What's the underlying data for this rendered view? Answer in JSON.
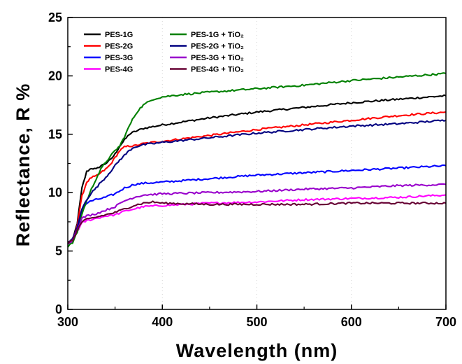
{
  "chart_data": {
    "type": "line",
    "title": "",
    "xlabel": "Wavelength (nm)",
    "ylabel": "Reflectance, R %",
    "xlim": [
      300,
      700
    ],
    "ylim": [
      0,
      25
    ],
    "xticks": [
      300,
      400,
      500,
      600,
      700
    ],
    "yticks": [
      0,
      5,
      10,
      15,
      20,
      25
    ],
    "grid": false,
    "legend_position": "top-left",
    "series": [
      {
        "name": "PES-1G",
        "color": "#000000",
        "legend_col": 0,
        "legend_row": 0,
        "points": [
          [
            300,
            5.6
          ],
          [
            305,
            5.9
          ],
          [
            310,
            7.4
          ],
          [
            315,
            10.4
          ],
          [
            320,
            11.8
          ],
          [
            325,
            12.1
          ],
          [
            330,
            12.0
          ],
          [
            335,
            12.3
          ],
          [
            340,
            12.5
          ],
          [
            345,
            12.8
          ],
          [
            350,
            13.3
          ],
          [
            355,
            14.0
          ],
          [
            360,
            14.5
          ],
          [
            365,
            15.0
          ],
          [
            370,
            15.2
          ],
          [
            380,
            15.5
          ],
          [
            400,
            15.8
          ],
          [
            450,
            16.4
          ],
          [
            500,
            16.9
          ],
          [
            550,
            17.3
          ],
          [
            600,
            17.7
          ],
          [
            650,
            18.0
          ],
          [
            700,
            18.3
          ]
        ]
      },
      {
        "name": "PES-2G",
        "color": "#ff0000",
        "legend_col": 0,
        "legend_row": 1,
        "points": [
          [
            300,
            5.7
          ],
          [
            305,
            6.0
          ],
          [
            310,
            7.2
          ],
          [
            315,
            9.7
          ],
          [
            320,
            10.9
          ],
          [
            325,
            11.3
          ],
          [
            330,
            11.4
          ],
          [
            335,
            11.7
          ],
          [
            340,
            12.0
          ],
          [
            345,
            12.4
          ],
          [
            350,
            13.0
          ],
          [
            355,
            13.6
          ],
          [
            360,
            13.9
          ],
          [
            365,
            14.0
          ],
          [
            370,
            14.0
          ],
          [
            380,
            14.2
          ],
          [
            400,
            14.4
          ],
          [
            450,
            14.9
          ],
          [
            500,
            15.4
          ],
          [
            550,
            15.8
          ],
          [
            600,
            16.2
          ],
          [
            650,
            16.6
          ],
          [
            700,
            16.9
          ]
        ]
      },
      {
        "name": "PES-3G",
        "color": "#0000ff",
        "legend_col": 0,
        "legend_row": 2,
        "points": [
          [
            300,
            5.6
          ],
          [
            305,
            5.8
          ],
          [
            310,
            7.0
          ],
          [
            315,
            8.6
          ],
          [
            320,
            9.1
          ],
          [
            325,
            9.3
          ],
          [
            330,
            9.4
          ],
          [
            340,
            9.6
          ],
          [
            350,
            9.9
          ],
          [
            360,
            10.4
          ],
          [
            370,
            10.7
          ],
          [
            380,
            10.8
          ],
          [
            400,
            10.9
          ],
          [
            450,
            11.2
          ],
          [
            500,
            11.5
          ],
          [
            550,
            11.7
          ],
          [
            600,
            11.9
          ],
          [
            650,
            12.1
          ],
          [
            700,
            12.3
          ]
        ]
      },
      {
        "name": "PES-4G",
        "color": "#ff00ff",
        "legend_col": 0,
        "legend_row": 3,
        "points": [
          [
            300,
            5.6
          ],
          [
            305,
            5.8
          ],
          [
            310,
            6.7
          ],
          [
            315,
            7.4
          ],
          [
            320,
            7.6
          ],
          [
            330,
            7.8
          ],
          [
            340,
            8.0
          ],
          [
            350,
            8.1
          ],
          [
            360,
            8.4
          ],
          [
            370,
            8.6
          ],
          [
            380,
            8.8
          ],
          [
            400,
            8.9
          ],
          [
            450,
            9.1
          ],
          [
            500,
            9.2
          ],
          [
            550,
            9.4
          ],
          [
            600,
            9.5
          ],
          [
            650,
            9.6
          ],
          [
            700,
            9.8
          ]
        ]
      },
      {
        "name": "PES-1G + TiO₂",
        "color": "#008000",
        "legend_col": 1,
        "legend_row": 0,
        "points": [
          [
            300,
            5.4
          ],
          [
            305,
            5.7
          ],
          [
            310,
            6.6
          ],
          [
            315,
            8.2
          ],
          [
            320,
            9.3
          ],
          [
            325,
            10.3
          ],
          [
            330,
            11.2
          ],
          [
            335,
            12.0
          ],
          [
            340,
            12.6
          ],
          [
            345,
            13.1
          ],
          [
            350,
            13.6
          ],
          [
            355,
            14.0
          ],
          [
            360,
            14.8
          ],
          [
            365,
            15.7
          ],
          [
            370,
            16.5
          ],
          [
            375,
            17.1
          ],
          [
            380,
            17.5
          ],
          [
            390,
            18.0
          ],
          [
            400,
            18.2
          ],
          [
            420,
            18.4
          ],
          [
            450,
            18.6
          ],
          [
            500,
            18.9
          ],
          [
            550,
            19.2
          ],
          [
            600,
            19.6
          ],
          [
            650,
            19.9
          ],
          [
            700,
            20.2
          ]
        ]
      },
      {
        "name": "PES-2G + TiO₂",
        "color": "#000080",
        "legend_col": 1,
        "legend_row": 1,
        "points": [
          [
            300,
            5.8
          ],
          [
            305,
            6.0
          ],
          [
            310,
            7.0
          ],
          [
            315,
            8.6
          ],
          [
            320,
            9.4
          ],
          [
            325,
            10.0
          ],
          [
            330,
            10.4
          ],
          [
            335,
            10.9
          ],
          [
            340,
            11.3
          ],
          [
            345,
            11.8
          ],
          [
            350,
            12.3
          ],
          [
            355,
            12.8
          ],
          [
            360,
            13.2
          ],
          [
            365,
            13.6
          ],
          [
            370,
            13.9
          ],
          [
            380,
            14.1
          ],
          [
            400,
            14.3
          ],
          [
            450,
            14.7
          ],
          [
            500,
            15.1
          ],
          [
            550,
            15.4
          ],
          [
            600,
            15.7
          ],
          [
            650,
            15.9
          ],
          [
            700,
            16.2
          ]
        ]
      },
      {
        "name": "PES-3G + TiO₂",
        "color": "#9900cc",
        "legend_col": 1,
        "legend_row": 2,
        "points": [
          [
            300,
            5.7
          ],
          [
            305,
            5.9
          ],
          [
            310,
            6.9
          ],
          [
            315,
            7.8
          ],
          [
            320,
            8.0
          ],
          [
            330,
            8.2
          ],
          [
            340,
            8.5
          ],
          [
            350,
            8.8
          ],
          [
            360,
            9.3
          ],
          [
            370,
            9.6
          ],
          [
            380,
            9.8
          ],
          [
            400,
            9.9
          ],
          [
            450,
            10.0
          ],
          [
            500,
            10.1
          ],
          [
            550,
            10.3
          ],
          [
            600,
            10.4
          ],
          [
            650,
            10.6
          ],
          [
            700,
            10.7
          ]
        ]
      },
      {
        "name": "PES-4G + TiO₂",
        "color": "#660033",
        "legend_col": 1,
        "legend_row": 3,
        "points": [
          [
            300,
            5.7
          ],
          [
            305,
            5.9
          ],
          [
            310,
            6.8
          ],
          [
            315,
            7.5
          ],
          [
            320,
            7.7
          ],
          [
            330,
            7.9
          ],
          [
            340,
            8.1
          ],
          [
            350,
            8.3
          ],
          [
            360,
            8.6
          ],
          [
            370,
            8.9
          ],
          [
            380,
            9.1
          ],
          [
            390,
            9.2
          ],
          [
            400,
            9.1
          ],
          [
            450,
            9.0
          ],
          [
            500,
            9.0
          ],
          [
            550,
            9.0
          ],
          [
            600,
            9.1
          ],
          [
            650,
            9.1
          ],
          [
            700,
            9.1
          ]
        ]
      }
    ]
  }
}
